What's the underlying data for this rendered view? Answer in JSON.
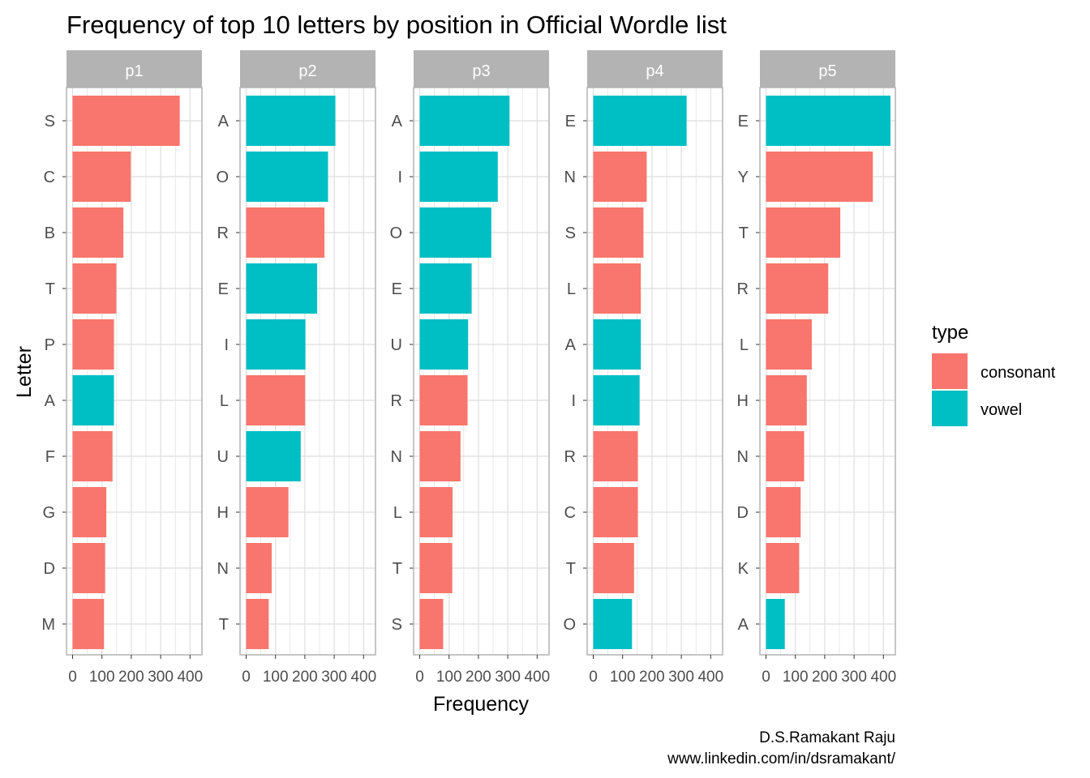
{
  "chart_data": {
    "type": "bar",
    "orientation": "horizontal",
    "title": "Frequency of top 10 letters by position in Official Wordle list",
    "xlabel": "Frequency",
    "ylabel": "Letter",
    "xlim": [
      0,
      440
    ],
    "x_ticks": [
      0,
      100,
      200,
      300,
      400
    ],
    "x_tick_labels": [
      "0",
      "100",
      "200",
      "300",
      "400"
    ],
    "grid": true,
    "legend": {
      "title": "type",
      "position": "right",
      "entries": [
        {
          "key": "consonant",
          "label": "consonant",
          "color": "#F8766D"
        },
        {
          "key": "vowel",
          "label": "vowel",
          "color": "#00BFC4"
        }
      ]
    },
    "facets": [
      {
        "label": "p1",
        "bars": [
          {
            "letter": "S",
            "value": 365,
            "type": "consonant"
          },
          {
            "letter": "C",
            "value": 198,
            "type": "consonant"
          },
          {
            "letter": "B",
            "value": 173,
            "type": "consonant"
          },
          {
            "letter": "T",
            "value": 149,
            "type": "consonant"
          },
          {
            "letter": "P",
            "value": 141,
            "type": "consonant"
          },
          {
            "letter": "A",
            "value": 141,
            "type": "vowel"
          },
          {
            "letter": "F",
            "value": 136,
            "type": "consonant"
          },
          {
            "letter": "G",
            "value": 115,
            "type": "consonant"
          },
          {
            "letter": "D",
            "value": 111,
            "type": "consonant"
          },
          {
            "letter": "M",
            "value": 107,
            "type": "consonant"
          }
        ]
      },
      {
        "label": "p2",
        "bars": [
          {
            "letter": "A",
            "value": 304,
            "type": "vowel"
          },
          {
            "letter": "O",
            "value": 279,
            "type": "vowel"
          },
          {
            "letter": "R",
            "value": 267,
            "type": "consonant"
          },
          {
            "letter": "E",
            "value": 242,
            "type": "vowel"
          },
          {
            "letter": "I",
            "value": 202,
            "type": "vowel"
          },
          {
            "letter": "L",
            "value": 201,
            "type": "consonant"
          },
          {
            "letter": "U",
            "value": 186,
            "type": "vowel"
          },
          {
            "letter": "H",
            "value": 144,
            "type": "consonant"
          },
          {
            "letter": "N",
            "value": 87,
            "type": "consonant"
          },
          {
            "letter": "T",
            "value": 77,
            "type": "consonant"
          }
        ]
      },
      {
        "label": "p3",
        "bars": [
          {
            "letter": "A",
            "value": 306,
            "type": "vowel"
          },
          {
            "letter": "I",
            "value": 266,
            "type": "vowel"
          },
          {
            "letter": "O",
            "value": 244,
            "type": "vowel"
          },
          {
            "letter": "E",
            "value": 177,
            "type": "vowel"
          },
          {
            "letter": "U",
            "value": 165,
            "type": "vowel"
          },
          {
            "letter": "R",
            "value": 163,
            "type": "consonant"
          },
          {
            "letter": "N",
            "value": 139,
            "type": "consonant"
          },
          {
            "letter": "L",
            "value": 112,
            "type": "consonant"
          },
          {
            "letter": "T",
            "value": 111,
            "type": "consonant"
          },
          {
            "letter": "S",
            "value": 80,
            "type": "consonant"
          }
        ]
      },
      {
        "label": "p4",
        "bars": [
          {
            "letter": "E",
            "value": 318,
            "type": "vowel"
          },
          {
            "letter": "N",
            "value": 182,
            "type": "consonant"
          },
          {
            "letter": "S",
            "value": 171,
            "type": "consonant"
          },
          {
            "letter": "L",
            "value": 162,
            "type": "consonant"
          },
          {
            "letter": "A",
            "value": 162,
            "type": "vowel"
          },
          {
            "letter": "I",
            "value": 158,
            "type": "vowel"
          },
          {
            "letter": "R",
            "value": 152,
            "type": "consonant"
          },
          {
            "letter": "C",
            "value": 152,
            "type": "consonant"
          },
          {
            "letter": "T",
            "value": 139,
            "type": "consonant"
          },
          {
            "letter": "O",
            "value": 132,
            "type": "vowel"
          }
        ]
      },
      {
        "label": "p5",
        "bars": [
          {
            "letter": "E",
            "value": 424,
            "type": "vowel"
          },
          {
            "letter": "Y",
            "value": 364,
            "type": "consonant"
          },
          {
            "letter": "T",
            "value": 253,
            "type": "consonant"
          },
          {
            "letter": "R",
            "value": 212,
            "type": "consonant"
          },
          {
            "letter": "L",
            "value": 156,
            "type": "consonant"
          },
          {
            "letter": "H",
            "value": 139,
            "type": "consonant"
          },
          {
            "letter": "N",
            "value": 130,
            "type": "consonant"
          },
          {
            "letter": "D",
            "value": 118,
            "type": "consonant"
          },
          {
            "letter": "K",
            "value": 113,
            "type": "consonant"
          },
          {
            "letter": "A",
            "value": 64,
            "type": "vowel"
          }
        ]
      }
    ],
    "caption": [
      "D.S.Ramakant Raju",
      "www.linkedin.com/in/dsramakant/"
    ],
    "colors": {
      "consonant": "#F8766D",
      "vowel": "#00BFC4",
      "strip_background": "#b3b3b3",
      "panel_border": "#b3b3b3",
      "grid": "#dedede"
    }
  }
}
